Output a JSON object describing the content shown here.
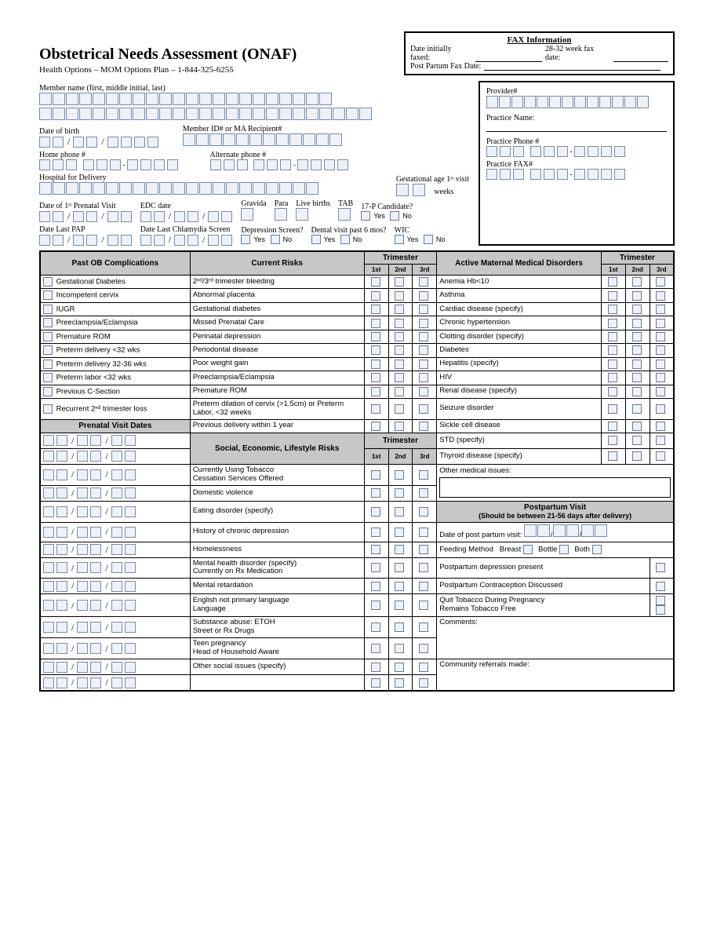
{
  "title": "Obstetrical Needs Assessment (ONAF)",
  "subtitle": "Health Options – MOM Options Plan – 1-844-325-6255",
  "fax": {
    "heading": "FAX Information",
    "date_initially": "Date initially faxed:",
    "week_fax": "28-32 week fax date:",
    "postpartum": "Post Partum Fax Date:"
  },
  "labels": {
    "member_name": "Member name (first, middle initial, last)",
    "dob": "Date of birth",
    "member_id": "Member ID# or MA Recipient#",
    "home_phone": "Home phone #",
    "alt_phone": "Alternate phone #",
    "hospital": "Hospital for Delivery",
    "gest_age": "Gestational age 1ˢᵗ visit",
    "weeks": "weeks",
    "first_prenatal": "Date of 1ˢᵗ  Prenatal Visit",
    "edc": "EDC date",
    "gravida": "Gravida",
    "para": "Para",
    "live_births": "Live births",
    "tab": "TAB",
    "candidate": "17-P Candidate?",
    "date_last_pap": "Date Last PAP",
    "date_last_chlamydia": "Date Last Chlamydia Screen",
    "depression": "Depression Screen?",
    "dental": "Dental visit past 6 mos?",
    "wic": "WIC",
    "yes": "Yes",
    "no": "No",
    "provider_num": "Provider#",
    "practice_name": "Practice Name:",
    "practice_phone": "Practice Phone #",
    "practice_fax": "Practice FAX#"
  },
  "headers": {
    "past_ob": "Past OB Complications",
    "current_risks": "Current Risks",
    "trimester": "Trimester",
    "t1": "1st",
    "t2": "2nd",
    "t3": "3rd",
    "active_maternal": "Active Maternal Medical Disorders",
    "prenatal_dates": "Prenatal Visit Dates",
    "social": "Social, Economic, Lifestyle Risks",
    "postpartum": "Postpartum Visit",
    "postpartum_sub": "(Should be between 21-56 days after delivery)"
  },
  "past_ob": [
    "Gestational Diabetes",
    "Incompetent cervix",
    "IUGR",
    "Preeclampsia/Eclampsia",
    "Premature ROM",
    "Preterm delivery <32 wks",
    "Preterm delivery 32-36 wks",
    "Preterm labor <32 wks",
    "Previous C-Section",
    "Recurrent 2ⁿᵈ trimester loss"
  ],
  "current_risks": [
    "2ⁿᵈ/3ʳᵈ trimester bleeding",
    "Abnormal placenta",
    "Gestational diabetes",
    "Missed Prenatal Care",
    "Perinatal depression",
    "Periodontal disease",
    "Poor weight gain",
    "Preeclampsia/Eclampsia",
    "Premature ROM",
    "Preterm dilation of cervix (>1.5cm) or Preterm Labor, <32 weeks",
    "Previous delivery within 1 year"
  ],
  "social_risks": [
    "Currently Using Tobacco\nCessation Services Offered",
    "Domestic violence",
    "Eating disorder (specify)",
    "History of chronic depression",
    "Homelessness",
    "Mental health disorder (specify)\n    Currently on Rx Medication",
    "Mental retardation",
    "English not primary language\n    Language",
    "Substance abuse:                      ETOH\n            Street or Rx Drugs",
    "Teen pregnancy\n    Head of Household Aware",
    "Other social issues (specify)"
  ],
  "maternal": [
    "Anemia Hb<10",
    "Asthma",
    "Cardiac disease (specify)",
    "Chronic hypertension",
    "Clotting disorder (specify)",
    "Diabetes",
    "Hepatitis (specify)",
    "HIV",
    "Renal disease (specify)",
    "Seizure disorder",
    "Sickle cell disease",
    "STD (specify)",
    "Thyroid disease (specify)"
  ],
  "other_medical": "Other medical issues:",
  "postpartum": {
    "date": "Date of post partum visit:",
    "feeding": "Feeding Method",
    "breast": "Breast",
    "bottle": "Bottle",
    "both": "Both",
    "dep_present": "Postpartum depression present",
    "contra": "Postpartum Contraception Discussed",
    "quit": "Quit Tobacco During Pregnancy\n          Remains Tobacco Free",
    "comments": "Comments:",
    "referrals": "Community referrals made:"
  },
  "colors": {
    "cell_bg": "#eef1f8",
    "cell_border": "#7a8aa8",
    "hdr_bg": "#c7c7c7"
  }
}
